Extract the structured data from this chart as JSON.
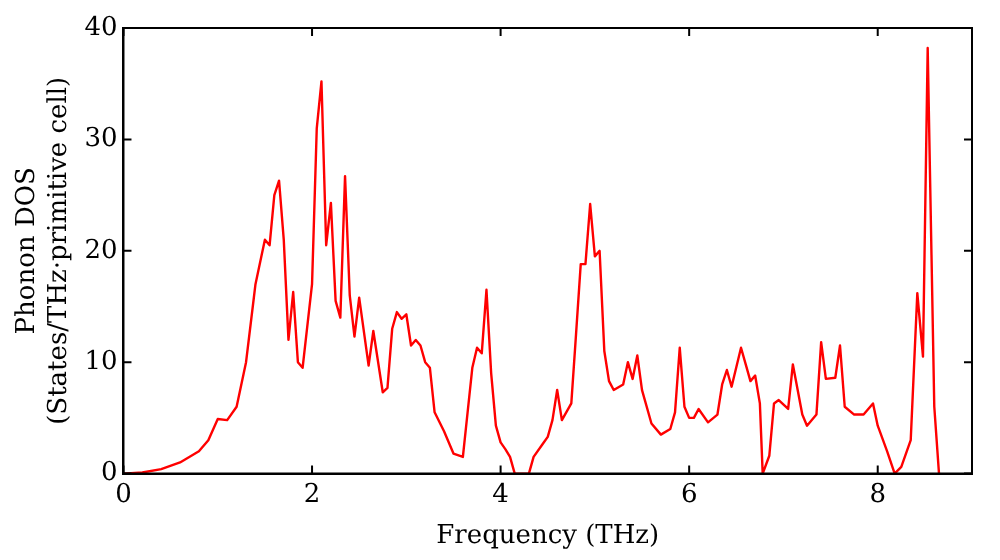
{
  "chart_data": {
    "type": "line",
    "xlabel": "Frequency (THz)",
    "ylabel": "Phonon DOS\n(States/THz·primitive cell)",
    "xlim": [
      0,
      9
    ],
    "ylim": [
      0,
      40
    ],
    "xticks": [
      0,
      2,
      4,
      6,
      8
    ],
    "yticks": [
      0,
      10,
      20,
      30,
      40
    ],
    "grid": false,
    "legend": false,
    "marker": "none",
    "line_style": "solid",
    "series": [
      {
        "color": "#ff0000",
        "x": [
          0,
          0.2,
          0.4,
          0.6,
          0.8,
          0.9,
          1.0,
          1.1,
          1.2,
          1.3,
          1.4,
          1.5,
          1.55,
          1.6,
          1.65,
          1.7,
          1.75,
          1.8,
          1.85,
          1.9,
          2.0,
          2.05,
          2.1,
          2.15,
          2.2,
          2.25,
          2.3,
          2.35,
          2.4,
          2.45,
          2.5,
          2.6,
          2.65,
          2.75,
          2.8,
          2.85,
          2.9,
          2.95,
          3.0,
          3.05,
          3.1,
          3.15,
          3.2,
          3.25,
          3.3,
          3.4,
          3.5,
          3.6,
          3.7,
          3.75,
          3.8,
          3.85,
          3.9,
          3.95,
          4.0,
          4.05,
          4.1,
          4.15,
          4.3,
          4.35,
          4.45,
          4.5,
          4.55,
          4.6,
          4.65,
          4.75,
          4.8,
          4.85,
          4.9,
          4.95,
          5.0,
          5.05,
          5.1,
          5.15,
          5.2,
          5.3,
          5.35,
          5.4,
          5.45,
          5.5,
          5.6,
          5.7,
          5.8,
          5.85,
          5.9,
          5.95,
          6.0,
          6.05,
          6.1,
          6.2,
          6.3,
          6.35,
          6.4,
          6.45,
          6.55,
          6.6,
          6.65,
          6.7,
          6.75,
          6.78,
          6.85,
          6.9,
          6.95,
          7.05,
          7.1,
          7.2,
          7.25,
          7.35,
          7.4,
          7.45,
          7.55,
          7.6,
          7.65,
          7.75,
          7.85,
          7.95,
          8.0,
          8.1,
          8.18,
          8.25,
          8.35,
          8.42,
          8.48,
          8.53,
          8.6,
          8.65
        ],
        "values": [
          0,
          0.1,
          0.4,
          1,
          2,
          3,
          4.9,
          4.8,
          6,
          10,
          17,
          21,
          20.5,
          25,
          26.3,
          21,
          12,
          16.3,
          10,
          9.5,
          17,
          31,
          35.2,
          20.5,
          24.3,
          15.5,
          14,
          26.7,
          16,
          12.3,
          15.8,
          9.7,
          12.8,
          7.3,
          7.7,
          13,
          14.5,
          13.9,
          14.3,
          11.5,
          12,
          11.5,
          10,
          9.5,
          5.5,
          3.8,
          1.8,
          1.5,
          9.5,
          11.3,
          10.8,
          16.5,
          9,
          4.3,
          2.8,
          2.2,
          1.5,
          0,
          0,
          1.5,
          2.7,
          3.3,
          4.8,
          7.5,
          4.8,
          6.3,
          12.5,
          18.8,
          18.8,
          24.2,
          19.5,
          20,
          11,
          8.3,
          7.5,
          8,
          10,
          8.5,
          10.6,
          7.5,
          4.5,
          3.5,
          4,
          5.5,
          11.3,
          6,
          5,
          5,
          5.8,
          4.6,
          5.3,
          8,
          9.3,
          7.8,
          11.3,
          9.8,
          8.3,
          8.8,
          6.3,
          0,
          1.6,
          6.3,
          6.6,
          5.8,
          9.8,
          5.3,
          4.3,
          5.3,
          11.8,
          8.5,
          8.6,
          11.5,
          6,
          5.3,
          5.3,
          6.3,
          4.3,
          2,
          0,
          0.6,
          3,
          16.2,
          10.5,
          38.2,
          6,
          0
        ]
      }
    ]
  }
}
